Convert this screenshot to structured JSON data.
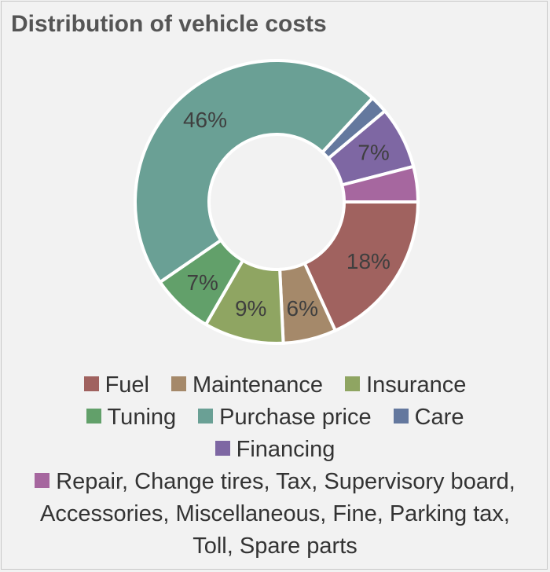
{
  "chart_data": {
    "type": "pie",
    "title": "Distribution of vehicle costs",
    "legend_position": "bottom",
    "slices": [
      {
        "name": "Fuel",
        "value": 18,
        "color": "#a0625f",
        "label": "18%"
      },
      {
        "name": "Maintenance",
        "value": 6,
        "color": "#a5896a",
        "label": "6%"
      },
      {
        "name": "Insurance",
        "value": 9,
        "color": "#8fa562",
        "label": "9%"
      },
      {
        "name": "Tuning",
        "value": 7,
        "color": "#62a06a",
        "label": "7%"
      },
      {
        "name": "Purchase price",
        "value": 46,
        "color": "#6aa095",
        "label": "46%"
      },
      {
        "name": "Care",
        "value": 2,
        "color": "#64789e",
        "label": ""
      },
      {
        "name": "Financing",
        "value": 7,
        "color": "#7e67a3",
        "label": "7%"
      },
      {
        "name": "Repair, Change tires, Tax, Supervisory board, Accessories, Miscellaneous, Fine, Parking tax, Toll, Spare parts",
        "value": 4,
        "color": "#a6679f",
        "label": ""
      }
    ]
  }
}
